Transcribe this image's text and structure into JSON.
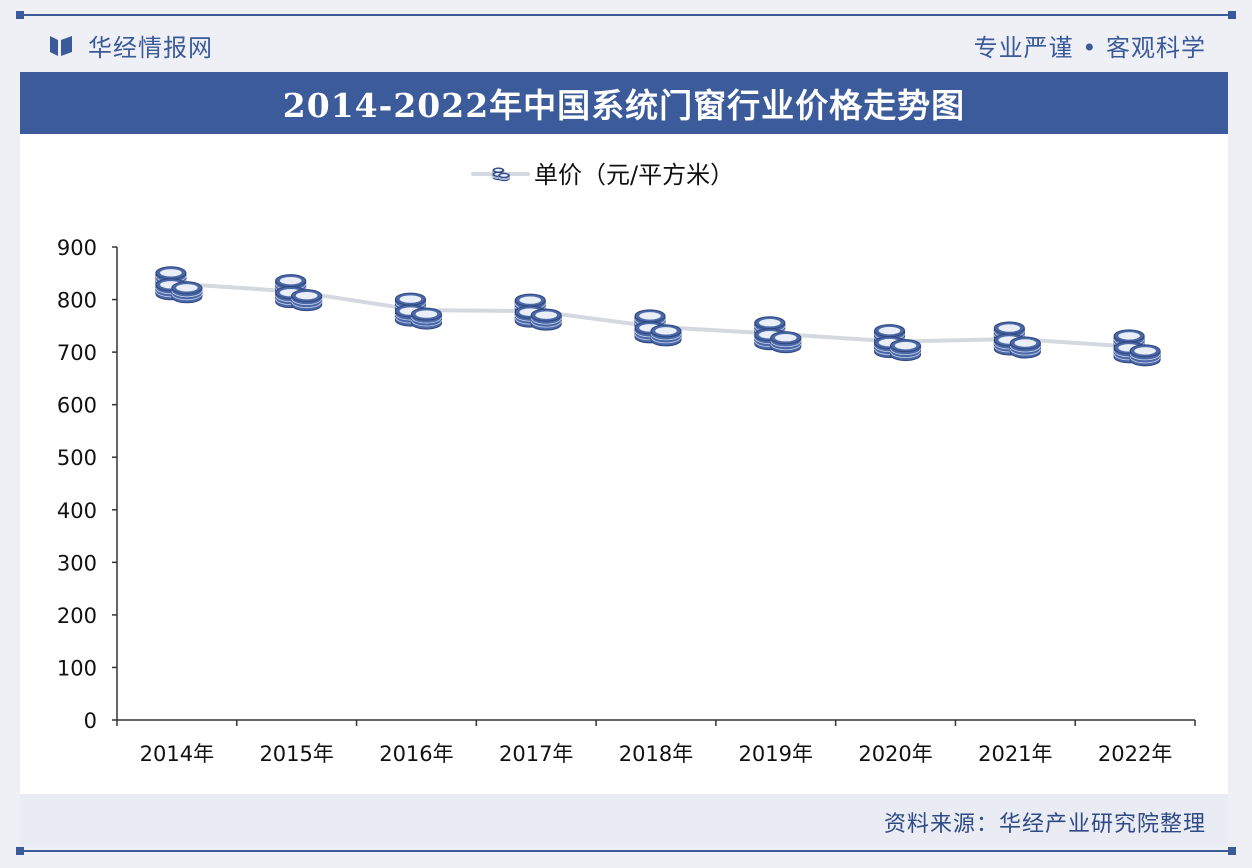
{
  "header": {
    "brand": "华经情报网",
    "slogan": "专业严谨 • 客观科学"
  },
  "footer": {
    "source": "资料来源：华经产业研究院整理"
  },
  "colors": {
    "brand_blue": "#3c5b9a",
    "line": "#d4d8e0",
    "marker_fill": "#4a67a8",
    "marker_light": "#e9eef7"
  },
  "chart_data": {
    "type": "line",
    "title": "2014-2022年中国系统门窗行业价格走势图",
    "categories": [
      "2014年",
      "2015年",
      "2016年",
      "2017年",
      "2018年",
      "2019年",
      "2020年",
      "2021年",
      "2022年"
    ],
    "series": [
      {
        "name": "单价（元/平方米）",
        "values": [
          830,
          815,
          780,
          778,
          748,
          735,
          720,
          725,
          710
        ],
        "marker": "coin-stack-icon"
      }
    ],
    "ylim": [
      0,
      900
    ],
    "yticks": [
      0,
      100,
      200,
      300,
      400,
      500,
      600,
      700,
      800,
      900
    ],
    "grid": false,
    "legend": "top-center",
    "xlabel": "",
    "ylabel": ""
  }
}
